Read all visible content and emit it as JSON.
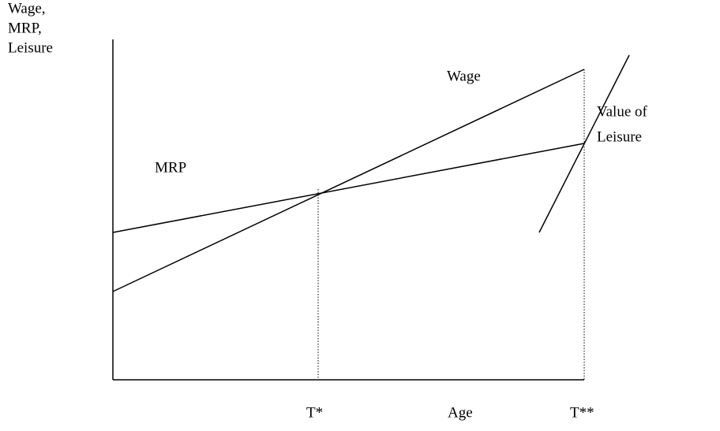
{
  "y_axis_label": [
    "Wage,",
    "MRP,",
    "Leisure"
  ],
  "x_axis_label": "Age",
  "curve_labels": {
    "wage": "Wage",
    "mrp": "MRP",
    "value_of_leisure": [
      "Value of",
      "Leisure"
    ]
  },
  "x_marks": [
    "T*",
    "T**"
  ]
}
